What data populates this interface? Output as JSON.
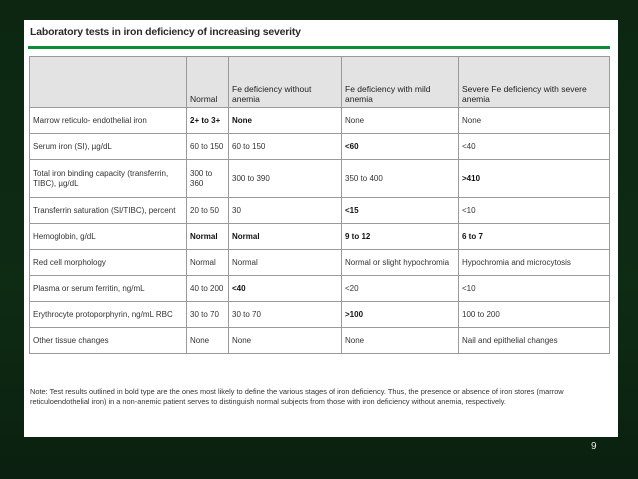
{
  "slide": {
    "title": "Laboratory tests in iron deficiency of increasing severity",
    "accent_color": "#0f8a3a",
    "background_color": "#0e2b14",
    "page_number": "9"
  },
  "table": {
    "headers": [
      "",
      "Normal",
      "Fe deficiency without anemia",
      "Fe deficiency with mild anemia",
      "Severe Fe deficiency with severe anemia"
    ],
    "rows": [
      {
        "cells": [
          "Marrow reticulo- endothelial iron",
          "2+ to 3+",
          "None",
          "None",
          "None"
        ],
        "bold": [
          false,
          true,
          true,
          false,
          false
        ]
      },
      {
        "cells": [
          "Serum iron (SI), µg/dL",
          "60 to 150",
          "60 to 150",
          "<60",
          "<40"
        ],
        "bold": [
          false,
          false,
          false,
          true,
          false
        ]
      },
      {
        "cells": [
          "Total iron binding capacity (transferrin, TIBC), µg/dL",
          "300 to 360",
          "300 to 390",
          "350 to 400",
          ">410"
        ],
        "bold": [
          false,
          false,
          false,
          false,
          true
        ]
      },
      {
        "cells": [
          "Transferrin saturation (SI/TIBC), percent",
          "20 to 50",
          "30",
          "<15",
          "<10"
        ],
        "bold": [
          false,
          false,
          false,
          true,
          false
        ]
      },
      {
        "cells": [
          "Hemoglobin, g/dL",
          "Normal",
          "Normal",
          "9 to 12",
          "6 to 7"
        ],
        "bold": [
          false,
          true,
          true,
          true,
          true
        ]
      },
      {
        "cells": [
          "Red cell morphology",
          "Normal",
          "Normal",
          "Normal or slight hypochromia",
          "Hypochromia and microcytosis"
        ],
        "bold": [
          false,
          false,
          false,
          false,
          false
        ]
      },
      {
        "cells": [
          "Plasma or serum ferritin, ng/mL",
          "40 to 200",
          "<40",
          "<20",
          "<10"
        ],
        "bold": [
          false,
          false,
          true,
          false,
          false
        ]
      },
      {
        "cells": [
          "Erythrocyte protoporphyrin, ng/mL RBC",
          "30 to 70",
          "30 to 70",
          ">100",
          "100 to 200"
        ],
        "bold": [
          false,
          false,
          false,
          true,
          false
        ]
      },
      {
        "cells": [
          "Other tissue changes",
          "None",
          "None",
          "None",
          "Nail and epithelial changes"
        ],
        "bold": [
          false,
          false,
          false,
          false,
          false
        ]
      }
    ]
  },
  "note": "Note: Test results outlined in bold type are the ones most likely to define the various stages of iron deficiency. Thus, the presence or absence of iron stores (marrow reticuloendothelial iron) in a non-anemic patient serves to distinguish normal subjects from those with iron deficiency without anemia, respectively."
}
